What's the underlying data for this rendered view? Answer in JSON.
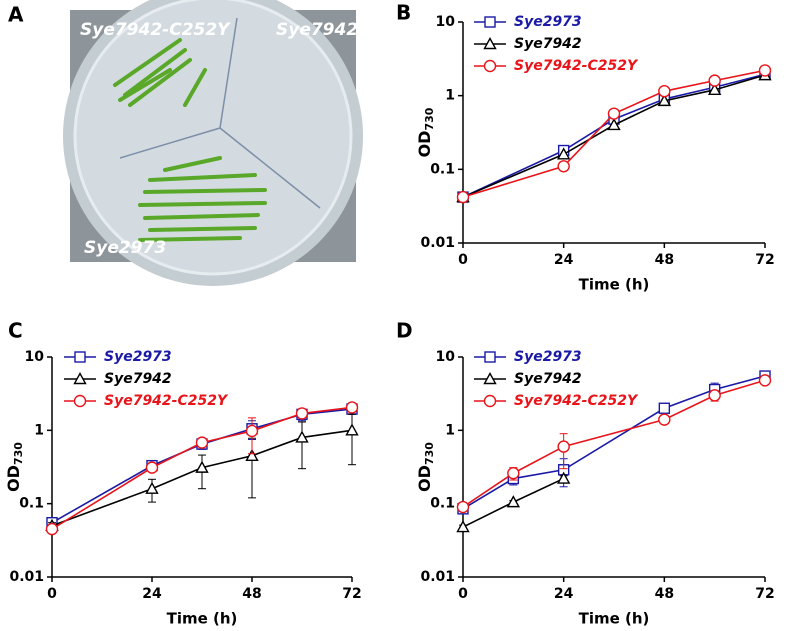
{
  "photo": {
    "panel": "A",
    "labels": [
      "Sye7942-C252Y",
      "Sye7942",
      "Sye2973"
    ]
  },
  "chart_data": [
    {
      "type": "line",
      "panel": "B",
      "xlabel": "Time (h)",
      "ylabel": "OD",
      "ylabel_subscript": "730",
      "log_y": true,
      "xlim": [
        0,
        72
      ],
      "xticks": [
        0,
        24,
        48,
        72
      ],
      "ylim": [
        0.01,
        10
      ],
      "yticks": [
        0.01,
        0.1,
        1,
        10
      ],
      "x": [
        0,
        24,
        36,
        48,
        60,
        72
      ],
      "series": [
        {
          "name": "Sye2973",
          "color": "#1a1aa6",
          "marker": "square",
          "values": [
            0.042,
            0.18,
            0.48,
            0.9,
            1.3,
            1.95
          ]
        },
        {
          "name": "Sye7942",
          "color": "#000000",
          "marker": "triangle",
          "values": [
            0.042,
            0.16,
            0.4,
            0.85,
            1.2,
            1.9
          ]
        },
        {
          "name": "Sye7942-C252Y",
          "color": "#e8141a",
          "marker": "circle",
          "values": [
            0.042,
            0.11,
            0.57,
            1.15,
            1.6,
            2.2
          ]
        }
      ]
    },
    {
      "type": "line",
      "panel": "C",
      "xlabel": "Time (h)",
      "ylabel": "OD",
      "ylabel_subscript": "730",
      "log_y": true,
      "xlim": [
        0,
        72
      ],
      "xticks": [
        0,
        24,
        48,
        72
      ],
      "ylim": [
        0.01,
        10
      ],
      "yticks": [
        0.01,
        0.1,
        1,
        10
      ],
      "x": [
        0,
        24,
        36,
        48,
        60,
        72
      ],
      "series": [
        {
          "name": "Sye2973",
          "color": "#1a1aa6",
          "marker": "square",
          "values": [
            0.055,
            0.33,
            0.65,
            1.05,
            1.65,
            1.95
          ],
          "errors": [
            0.005,
            0.04,
            0.1,
            0.3,
            0.3,
            0.3
          ]
        },
        {
          "name": "Sye7942",
          "color": "#000000",
          "marker": "triangle",
          "values": [
            0.05,
            0.16,
            0.31,
            0.45,
            0.8,
            1.0
          ],
          "errors": [
            0.005,
            0.055,
            0.15,
            0.33,
            0.5,
            0.66
          ]
        },
        {
          "name": "Sye7942-C252Y",
          "color": "#e8141a",
          "marker": "circle",
          "values": [
            0.045,
            0.31,
            0.68,
            0.98,
            1.7,
            2.05
          ],
          "errors": [
            0.005,
            0.03,
            0.08,
            0.5,
            0.2,
            0.25
          ]
        }
      ]
    },
    {
      "type": "line",
      "panel": "D",
      "xlabel": "Time (h)",
      "ylabel": "OD",
      "ylabel_subscript": "730",
      "log_y": true,
      "xlim": [
        0,
        72
      ],
      "xticks": [
        0,
        24,
        48,
        72
      ],
      "ylim": [
        0.01,
        10
      ],
      "yticks": [
        0.01,
        0.1,
        1,
        10
      ],
      "series": [
        {
          "name": "Sye2973",
          "color": "#1a1aa6",
          "marker": "square",
          "x": [
            0,
            12,
            24,
            48,
            60,
            72
          ],
          "values": [
            0.085,
            0.22,
            0.29,
            2.0,
            3.6,
            5.5
          ],
          "errors": [
            0.01,
            0.04,
            0.12,
            0.2,
            0.8,
            0.8
          ]
        },
        {
          "name": "Sye7942",
          "color": "#000000",
          "marker": "triangle",
          "x": [
            0,
            12,
            24
          ],
          "values": [
            0.048,
            0.105,
            0.22
          ],
          "errors": [
            0.003,
            0.005,
            0.02
          ]
        },
        {
          "name": "Sye7942-C252Y",
          "color": "#e8141a",
          "marker": "circle",
          "x": [
            0,
            12,
            24,
            48,
            60,
            72
          ],
          "values": [
            0.09,
            0.26,
            0.6,
            1.4,
            3.0,
            4.8
          ],
          "errors": [
            0.01,
            0.05,
            0.3,
            0.1,
            0.5,
            0.4
          ]
        }
      ]
    }
  ]
}
